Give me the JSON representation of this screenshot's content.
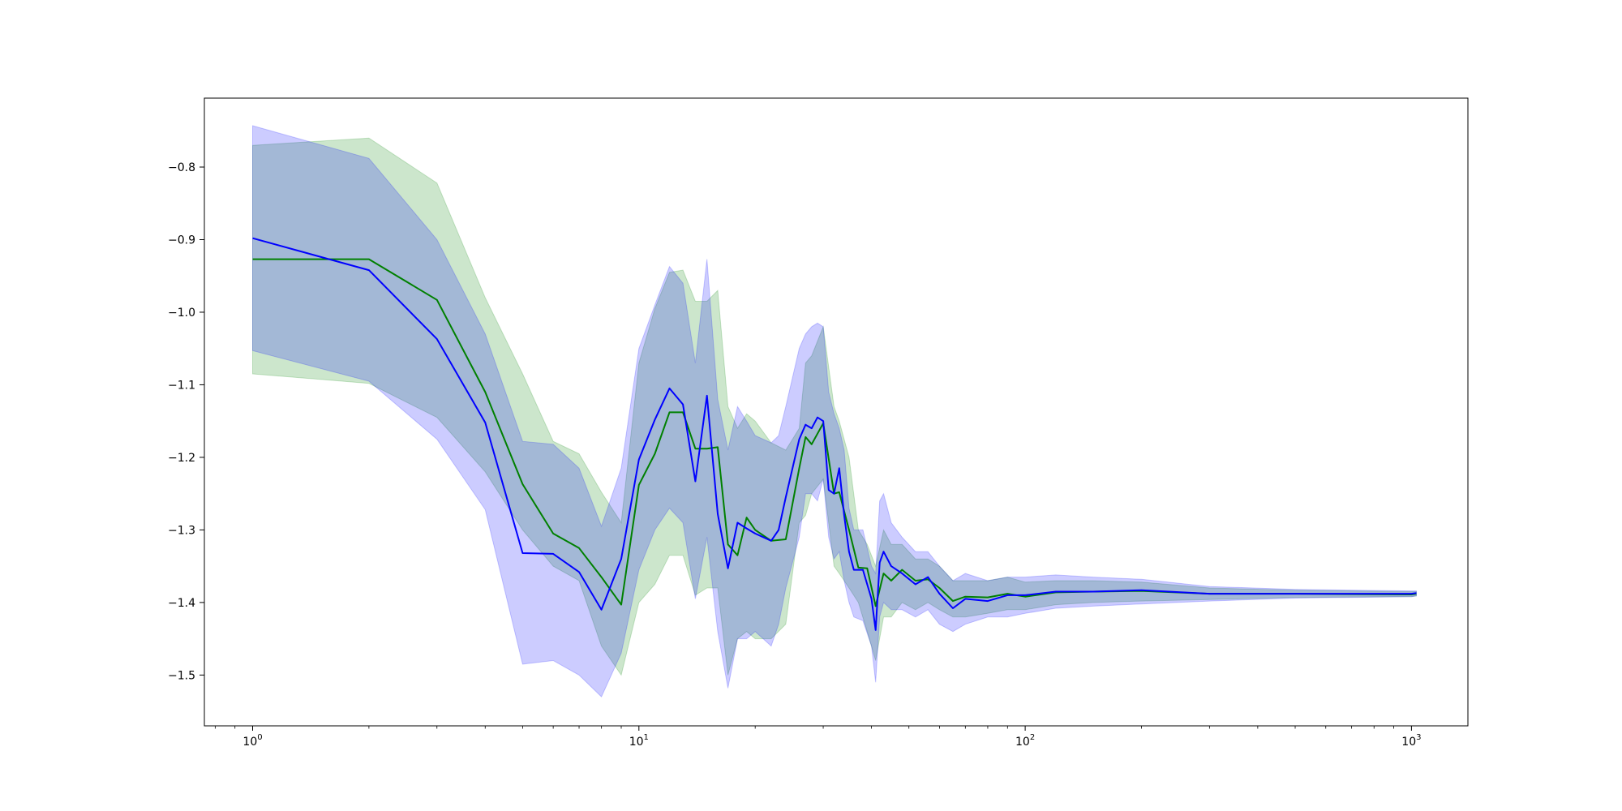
{
  "chart_data": {
    "type": "line",
    "title": "",
    "xlabel": "",
    "ylabel": "",
    "xscale": "log",
    "xlim": [
      0.75,
      1400
    ],
    "ylim": [
      -1.57,
      -0.705
    ],
    "grid": false,
    "legend": "none",
    "x_ticks": [
      {
        "value": 1,
        "base": "10",
        "exp": "0"
      },
      {
        "value": 10,
        "base": "10",
        "exp": "1"
      },
      {
        "value": 100,
        "base": "10",
        "exp": "2"
      },
      {
        "value": 1000,
        "base": "10",
        "exp": "3"
      }
    ],
    "y_ticks": [
      {
        "value": -0.8,
        "label": "−0.8"
      },
      {
        "value": -0.9,
        "label": "−0.9"
      },
      {
        "value": -1.0,
        "label": "−1.0"
      },
      {
        "value": -1.1,
        "label": "−1.1"
      },
      {
        "value": -1.2,
        "label": "−1.2"
      },
      {
        "value": -1.3,
        "label": "−1.3"
      },
      {
        "value": -1.4,
        "label": "−1.4"
      },
      {
        "value": -1.5,
        "label": "−1.5"
      }
    ],
    "series": [
      {
        "color": "#008000",
        "band_color": "#008000",
        "band_opacity": 0.2,
        "points": [
          [
            1,
            -0.927,
            -1.085,
            -0.77
          ],
          [
            2,
            -0.927,
            -1.098,
            -0.76
          ],
          [
            3,
            -0.983,
            -1.145,
            -0.822
          ],
          [
            4,
            -1.11,
            -1.22,
            -0.98
          ],
          [
            5,
            -1.237,
            -1.3,
            -1.085
          ],
          [
            6,
            -1.305,
            -1.35,
            -1.178
          ],
          [
            7,
            -1.325,
            -1.37,
            -1.195
          ],
          [
            8,
            -1.365,
            -1.46,
            -1.248
          ],
          [
            9,
            -1.403,
            -1.5,
            -1.29
          ],
          [
            10,
            -1.238,
            -1.4,
            -1.07
          ],
          [
            11,
            -1.195,
            -1.375,
            -0.995
          ],
          [
            12,
            -1.138,
            -1.335,
            -0.945
          ],
          [
            13,
            -1.138,
            -1.335,
            -0.942
          ],
          [
            14,
            -1.188,
            -1.39,
            -0.985
          ],
          [
            15,
            -1.188,
            -1.38,
            -0.985
          ],
          [
            16,
            -1.186,
            -1.38,
            -0.97
          ],
          [
            17,
            -1.32,
            -1.5,
            -1.13
          ],
          [
            18,
            -1.335,
            -1.45,
            -1.16
          ],
          [
            19,
            -1.283,
            -1.44,
            -1.14
          ],
          [
            20,
            -1.3,
            -1.45,
            -1.15
          ],
          [
            22,
            -1.315,
            -1.45,
            -1.18
          ],
          [
            24,
            -1.313,
            -1.43,
            -1.19
          ],
          [
            26,
            -1.215,
            -1.29,
            -1.16
          ],
          [
            27,
            -1.172,
            -1.28,
            -1.07
          ],
          [
            28,
            -1.182,
            -1.25,
            -1.06
          ],
          [
            30,
            -1.153,
            -1.23,
            -1.02
          ],
          [
            32,
            -1.25,
            -1.35,
            -1.13
          ],
          [
            33,
            -1.248,
            -1.36,
            -1.15
          ],
          [
            35,
            -1.3,
            -1.38,
            -1.2
          ],
          [
            37,
            -1.352,
            -1.4,
            -1.3
          ],
          [
            39,
            -1.353,
            -1.44,
            -1.32
          ],
          [
            41,
            -1.405,
            -1.48,
            -1.35
          ],
          [
            43,
            -1.36,
            -1.42,
            -1.3
          ],
          [
            45,
            -1.37,
            -1.42,
            -1.32
          ],
          [
            48,
            -1.355,
            -1.4,
            -1.32
          ],
          [
            52,
            -1.37,
            -1.41,
            -1.34
          ],
          [
            56,
            -1.368,
            -1.4,
            -1.34
          ],
          [
            60,
            -1.38,
            -1.41,
            -1.35
          ],
          [
            65,
            -1.398,
            -1.42,
            -1.37
          ],
          [
            70,
            -1.392,
            -1.42,
            -1.37
          ],
          [
            80,
            -1.393,
            -1.415,
            -1.37
          ],
          [
            90,
            -1.388,
            -1.41,
            -1.365
          ],
          [
            100,
            -1.392,
            -1.41,
            -1.372
          ],
          [
            120,
            -1.386,
            -1.403,
            -1.37
          ],
          [
            150,
            -1.385,
            -1.4,
            -1.37
          ],
          [
            200,
            -1.384,
            -1.398,
            -1.372
          ],
          [
            300,
            -1.388,
            -1.396,
            -1.38
          ],
          [
            500,
            -1.388,
            -1.393,
            -1.383
          ],
          [
            1000,
            -1.389,
            -1.392,
            -1.385
          ],
          [
            1030,
            -1.388,
            -1.391,
            -1.385
          ]
        ]
      },
      {
        "color": "#0000ff",
        "band_color": "#0000ff",
        "band_opacity": 0.2,
        "points": [
          [
            1,
            -0.898,
            -1.053,
            -0.743
          ],
          [
            2,
            -0.942,
            -1.095,
            -0.788
          ],
          [
            3,
            -1.037,
            -1.175,
            -0.9
          ],
          [
            4,
            -1.152,
            -1.272,
            -1.03
          ],
          [
            5,
            -1.332,
            -1.485,
            -1.178
          ],
          [
            6,
            -1.333,
            -1.48,
            -1.182
          ],
          [
            7,
            -1.358,
            -1.5,
            -1.215
          ],
          [
            8,
            -1.41,
            -1.53,
            -1.295
          ],
          [
            9,
            -1.34,
            -1.47,
            -1.215
          ],
          [
            10,
            -1.203,
            -1.355,
            -1.05
          ],
          [
            11,
            -1.148,
            -1.3,
            -0.99
          ],
          [
            12,
            -1.105,
            -1.27,
            -0.937
          ],
          [
            13,
            -1.127,
            -1.29,
            -0.96
          ],
          [
            14,
            -1.233,
            -1.395,
            -1.07
          ],
          [
            15,
            -1.115,
            -1.31,
            -0.927
          ],
          [
            16,
            -1.278,
            -1.44,
            -1.12
          ],
          [
            17,
            -1.353,
            -1.518,
            -1.19
          ],
          [
            18,
            -1.29,
            -1.45,
            -1.13
          ],
          [
            19,
            -1.298,
            -1.45,
            -1.15
          ],
          [
            20,
            -1.305,
            -1.44,
            -1.17
          ],
          [
            22,
            -1.315,
            -1.46,
            -1.18
          ],
          [
            23,
            -1.3,
            -1.43,
            -1.17
          ],
          [
            24,
            -1.255,
            -1.38,
            -1.13
          ],
          [
            26,
            -1.175,
            -1.31,
            -1.05
          ],
          [
            27,
            -1.155,
            -1.25,
            -1.03
          ],
          [
            28,
            -1.16,
            -1.25,
            -1.02
          ],
          [
            29,
            -1.145,
            -1.26,
            -1.015
          ],
          [
            30,
            -1.15,
            -1.23,
            -1.02
          ],
          [
            31,
            -1.245,
            -1.31,
            -1.11
          ],
          [
            32,
            -1.25,
            -1.34,
            -1.14
          ],
          [
            33,
            -1.215,
            -1.33,
            -1.16
          ],
          [
            34,
            -1.28,
            -1.37,
            -1.19
          ],
          [
            35,
            -1.33,
            -1.4,
            -1.27
          ],
          [
            36,
            -1.355,
            -1.42,
            -1.3
          ],
          [
            38,
            -1.355,
            -1.425,
            -1.3
          ],
          [
            40,
            -1.395,
            -1.46,
            -1.35
          ],
          [
            41,
            -1.438,
            -1.51,
            -1.36
          ],
          [
            42,
            -1.345,
            -1.42,
            -1.26
          ],
          [
            43,
            -1.33,
            -1.4,
            -1.25
          ],
          [
            45,
            -1.35,
            -1.41,
            -1.29
          ],
          [
            48,
            -1.36,
            -1.41,
            -1.31
          ],
          [
            52,
            -1.375,
            -1.42,
            -1.33
          ],
          [
            56,
            -1.365,
            -1.41,
            -1.33
          ],
          [
            60,
            -1.388,
            -1.43,
            -1.35
          ],
          [
            65,
            -1.408,
            -1.44,
            -1.37
          ],
          [
            70,
            -1.395,
            -1.43,
            -1.36
          ],
          [
            80,
            -1.398,
            -1.42,
            -1.37
          ],
          [
            90,
            -1.39,
            -1.42,
            -1.365
          ],
          [
            100,
            -1.39,
            -1.415,
            -1.365
          ],
          [
            120,
            -1.385,
            -1.408,
            -1.362
          ],
          [
            150,
            -1.385,
            -1.405,
            -1.365
          ],
          [
            200,
            -1.383,
            -1.402,
            -1.368
          ],
          [
            300,
            -1.388,
            -1.398,
            -1.378
          ],
          [
            500,
            -1.388,
            -1.394,
            -1.382
          ],
          [
            1000,
            -1.388,
            -1.392,
            -1.384
          ],
          [
            1030,
            -1.387,
            -1.391,
            -1.384
          ]
        ]
      }
    ]
  }
}
